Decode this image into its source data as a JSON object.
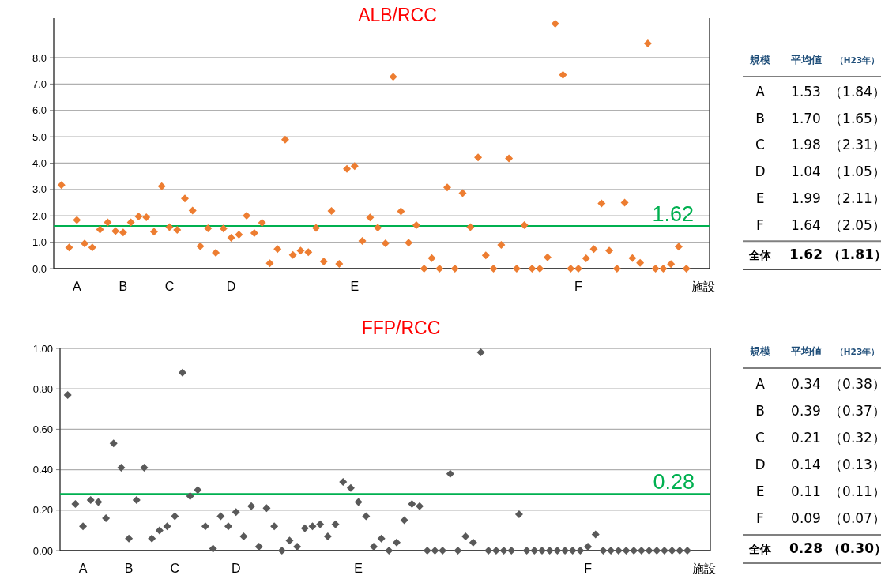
{
  "chart_data": [
    {
      "type": "scatter",
      "title": "ALB/RCC",
      "xlabel": "施設",
      "color": "#ed7d31",
      "marker": "diamond",
      "grid": "y",
      "categories": [
        null,
        null,
        "A",
        null,
        null,
        null,
        null,
        null,
        "B",
        null,
        null,
        null,
        null,
        null,
        "C",
        null,
        null,
        null,
        null,
        null,
        null,
        null,
        "D",
        null,
        null,
        null,
        null,
        null,
        null,
        null,
        null,
        null,
        null,
        null,
        null,
        null,
        null,
        null,
        "E",
        null,
        null,
        null,
        null,
        null,
        null,
        null,
        null,
        null,
        null,
        null,
        null,
        null,
        null,
        null,
        null,
        null,
        null,
        null,
        null,
        null,
        null,
        null,
        null,
        null,
        null,
        null,
        null,
        "F",
        null,
        null,
        null,
        null,
        null,
        null,
        null,
        null,
        null,
        null,
        null,
        null,
        null,
        null
      ],
      "values": [
        3.17,
        0.8,
        1.84,
        0.95,
        0.8,
        1.48,
        1.75,
        1.42,
        1.37,
        1.75,
        1.98,
        1.95,
        1.4,
        3.12,
        1.57,
        1.47,
        2.66,
        2.2,
        0.85,
        1.53,
        0.6,
        1.52,
        1.17,
        1.29,
        2.01,
        1.35,
        1.74,
        0.2,
        0.74,
        4.89,
        0.52,
        0.68,
        0.62,
        1.54,
        0.27,
        2.19,
        0.18,
        3.78,
        3.89,
        1.05,
        1.94,
        1.55,
        0.96,
        7.27,
        2.17,
        0.98,
        1.65,
        0,
        0.4,
        0,
        3.08,
        0,
        2.86,
        1.57,
        4.22,
        0.5,
        0,
        0.9,
        4.18,
        0,
        1.65,
        0,
        0,
        0.43,
        9.29,
        7.35,
        0,
        0,
        0.39,
        0.74,
        2.47,
        0.68,
        0,
        2.5,
        0.4,
        0.22,
        8.54,
        0,
        0,
        0.17,
        0.83,
        0
      ],
      "ylim": [
        0,
        9.5
      ],
      "yticks": [
        {
          "value": 0,
          "label": "0.0"
        },
        {
          "value": 1,
          "label": "1.0"
        },
        {
          "value": 2,
          "label": "2.0"
        },
        {
          "value": 3,
          "label": "3.0"
        },
        {
          "value": 4,
          "label": "4.0"
        },
        {
          "value": 5,
          "label": "5.0"
        },
        {
          "value": 6,
          "label": "6.0"
        },
        {
          "value": 7,
          "label": "7.0"
        },
        {
          "value": 8,
          "label": "8.0"
        }
      ],
      "ref_lines": [
        {
          "axis": "y",
          "value": 1.62,
          "label": "1.62",
          "color": "#00b050"
        }
      ]
    },
    {
      "type": "other",
      "xlabel": "規模",
      "categories": [
        "A",
        "B",
        "C",
        "D",
        "E",
        "F",
        "全体"
      ],
      "series": [
        {
          "name": "平均値",
          "values": [
            1.53,
            1.7,
            1.98,
            1.04,
            1.99,
            1.64,
            1.62
          ],
          "value_labels": [
            "1.53",
            "1.70",
            "1.98",
            "1.04",
            "1.99",
            "1.64",
            "1.62"
          ]
        },
        {
          "name": "（H23年）",
          "values": [
            1.84,
            1.65,
            2.31,
            1.05,
            2.11,
            2.05,
            1.81
          ],
          "value_labels": [
            "（1.84）",
            "（1.65）",
            "（2.31）",
            "（1.05）",
            "（2.11）",
            "（2.05）",
            "（1.81）"
          ]
        }
      ]
    },
    {
      "type": "scatter",
      "title": "FFP/RCC",
      "xlabel": "施設",
      "color": "#595959",
      "marker": "diamond",
      "grid": "y",
      "categories": [
        null,
        null,
        "A",
        null,
        null,
        null,
        null,
        null,
        "B",
        null,
        null,
        null,
        null,
        null,
        "C",
        null,
        null,
        null,
        null,
        null,
        null,
        null,
        "D",
        null,
        null,
        null,
        null,
        null,
        null,
        null,
        null,
        null,
        null,
        null,
        null,
        null,
        null,
        null,
        "E",
        null,
        null,
        null,
        null,
        null,
        null,
        null,
        null,
        null,
        null,
        null,
        null,
        null,
        null,
        null,
        null,
        null,
        null,
        null,
        null,
        null,
        null,
        null,
        null,
        null,
        null,
        null,
        null,
        null,
        "F",
        null,
        null,
        null,
        null,
        null,
        null,
        null,
        null,
        null,
        null,
        null,
        null,
        null
      ],
      "values": [
        0.77,
        0.23,
        0.12,
        0.25,
        0.24,
        0.16,
        0.53,
        0.41,
        0.06,
        0.25,
        0.41,
        0.06,
        0.1,
        0.12,
        0.17,
        0.88,
        0.27,
        0.3,
        0.12,
        0.01,
        0.17,
        0.12,
        0.19,
        0.07,
        0.22,
        0.02,
        0.21,
        0.12,
        0,
        0.05,
        0.02,
        0.11,
        0.12,
        0.13,
        0.07,
        0.13,
        0.34,
        0.31,
        0.24,
        0.17,
        0.02,
        0.06,
        0,
        0.04,
        0.15,
        0.23,
        0.22,
        0,
        0,
        0,
        0.38,
        0,
        0.07,
        0.04,
        0.98,
        0,
        0,
        0,
        0,
        0.18,
        0,
        0,
        0,
        0,
        0,
        0,
        0,
        0,
        0.02,
        0.08,
        0,
        0,
        0,
        0,
        0,
        0,
        0,
        0,
        0,
        0,
        0,
        0
      ],
      "ylim": [
        0,
        1
      ],
      "yticks": [
        {
          "value": 0,
          "label": "0.00"
        },
        {
          "value": 0.2,
          "label": "0.20"
        },
        {
          "value": 0.4,
          "label": "0.40"
        },
        {
          "value": 0.6,
          "label": "0.60"
        },
        {
          "value": 0.8,
          "label": "0.80"
        },
        {
          "value": 1,
          "label": "1.00"
        }
      ],
      "ref_lines": [
        {
          "axis": "y",
          "value": 0.28,
          "label": "0.28",
          "color": "#00b050"
        }
      ]
    },
    {
      "type": "other",
      "xlabel": "規模",
      "categories": [
        "A",
        "B",
        "C",
        "D",
        "E",
        "F",
        "全体"
      ],
      "series": [
        {
          "name": "平均値",
          "values": [
            0.34,
            0.39,
            0.21,
            0.14,
            0.11,
            0.09,
            0.28
          ],
          "value_labels": [
            "0.34",
            "0.39",
            "0.21",
            "0.14",
            "0.11",
            "0.09",
            "0.28"
          ]
        },
        {
          "name": "（H23年）",
          "values": [
            0.38,
            0.37,
            0.32,
            0.13,
            0.11,
            0.07,
            0.3
          ],
          "value_labels": [
            "（0.38）",
            "（0.37）",
            "（0.32）",
            "（0.13）",
            "（0.11）",
            "（0.07）",
            "（0.30）"
          ]
        }
      ]
    }
  ]
}
